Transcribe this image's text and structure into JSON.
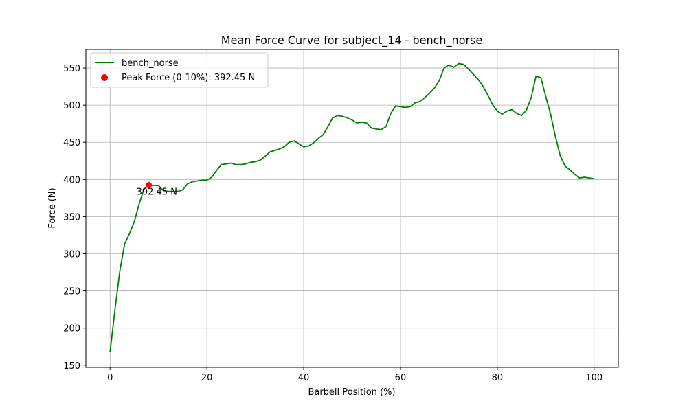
{
  "chart_data": {
    "type": "line",
    "title": "Mean Force Curve for subject_14 - bench_norse",
    "xlabel": "Barbell Position (%)",
    "ylabel": "Force (N)",
    "xlim": [
      -5,
      105
    ],
    "ylim": [
      147,
      575
    ],
    "xticks": [
      0,
      20,
      40,
      60,
      80,
      100
    ],
    "yticks": [
      150,
      200,
      250,
      300,
      350,
      400,
      450,
      500,
      550
    ],
    "grid": true,
    "legend_position": "top-left",
    "series": [
      {
        "name": "bench_norse",
        "color": "#008000",
        "x": [
          0,
          1,
          2,
          3,
          4,
          5,
          6,
          7,
          8,
          9,
          10,
          11,
          12,
          13,
          14,
          15,
          16,
          17,
          18,
          19,
          20,
          21,
          22,
          23,
          24,
          25,
          26,
          27,
          28,
          29,
          30,
          31,
          32,
          33,
          34,
          35,
          36,
          37,
          38,
          39,
          40,
          41,
          42,
          43,
          44,
          45,
          46,
          47,
          48,
          49,
          50,
          51,
          52,
          53,
          54,
          55,
          56,
          57,
          58,
          59,
          60,
          61,
          62,
          63,
          64,
          65,
          66,
          67,
          68,
          69,
          70,
          71,
          72,
          73,
          74,
          75,
          76,
          77,
          78,
          79,
          80,
          81,
          82,
          83,
          84,
          85,
          86,
          87,
          88,
          89,
          90,
          91,
          92,
          93,
          94,
          95,
          96,
          97,
          98,
          99,
          100
        ],
        "y": [
          168,
          224,
          276,
          313,
          327,
          343,
          367,
          387,
          392,
          392,
          392,
          385,
          384,
          384,
          384,
          386,
          394,
          397,
          398,
          399,
          399,
          403,
          412,
          420,
          421,
          422,
          420,
          420,
          421,
          423,
          424,
          426,
          431,
          437,
          439,
          441,
          444,
          450,
          452,
          448,
          444,
          445,
          449,
          455,
          460,
          471,
          483,
          486,
          485,
          483,
          480,
          476,
          477,
          476,
          469,
          468,
          467,
          471,
          489,
          499,
          498,
          497,
          498,
          503,
          505,
          510,
          516,
          523,
          533,
          550,
          554,
          551,
          556,
          555,
          549,
          542,
          535,
          526,
          514,
          501,
          492,
          488,
          492,
          494,
          489,
          486,
          493,
          510,
          539,
          537,
          512,
          488,
          458,
          432,
          418,
          413,
          407,
          402,
          403,
          402,
          401
        ]
      }
    ],
    "peak": {
      "label": "Peak Force (0-10%): 392.45 N",
      "x": 8,
      "y": 392.45,
      "color": "#ff0000",
      "annotation": "392.45 N"
    }
  }
}
